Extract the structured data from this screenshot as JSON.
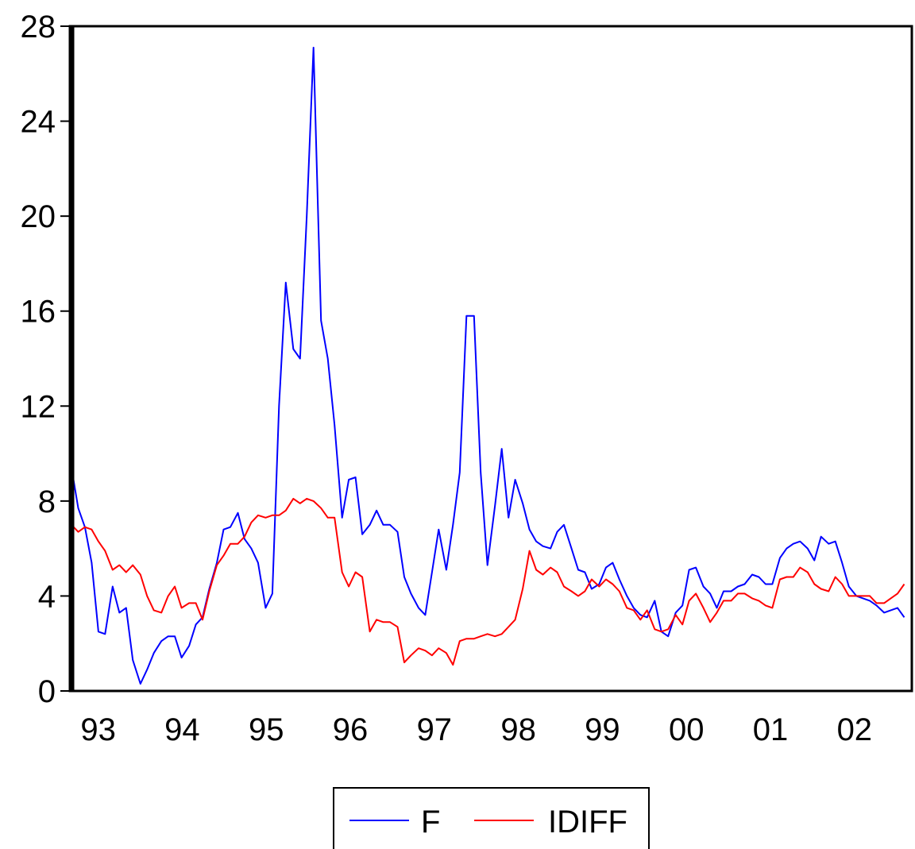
{
  "chart_data": {
    "type": "line",
    "title": "",
    "xlabel": "",
    "ylabel": "",
    "ylim": [
      0,
      28
    ],
    "xlim": [
      1992.72,
      2002.72
    ],
    "y_ticks": [
      "0",
      "4",
      "8",
      "12",
      "16",
      "20",
      "24",
      "28"
    ],
    "x_ticks": [
      {
        "x": 1993,
        "label": "93"
      },
      {
        "x": 1994,
        "label": "94"
      },
      {
        "x": 1995,
        "label": "95"
      },
      {
        "x": 1996,
        "label": "96"
      },
      {
        "x": 1997,
        "label": "97"
      },
      {
        "x": 1998,
        "label": "98"
      },
      {
        "x": 1999,
        "label": "99"
      },
      {
        "x": 2000,
        "label": "00"
      },
      {
        "x": 2001,
        "label": "01"
      },
      {
        "x": 2002,
        "label": "02"
      }
    ],
    "grid": false,
    "legend": "bottom-center",
    "series": [
      {
        "name": "F",
        "color": "#0000ff",
        "points": [
          [
            1992.72,
            9.4
          ],
          [
            1992.8,
            7.7
          ],
          [
            1992.88,
            6.9
          ],
          [
            1992.96,
            5.4
          ],
          [
            1993.04,
            2.5
          ],
          [
            1993.12,
            2.4
          ],
          [
            1993.21,
            4.4
          ],
          [
            1993.29,
            3.3
          ],
          [
            1993.37,
            3.5
          ],
          [
            1993.45,
            1.3
          ],
          [
            1993.54,
            0.3
          ],
          [
            1993.62,
            0.9
          ],
          [
            1993.7,
            1.6
          ],
          [
            1993.79,
            2.1
          ],
          [
            1993.87,
            2.3
          ],
          [
            1993.95,
            2.3
          ],
          [
            1994.03,
            1.4
          ],
          [
            1994.12,
            1.9
          ],
          [
            1994.2,
            2.8
          ],
          [
            1994.28,
            3.1
          ],
          [
            1994.36,
            4.3
          ],
          [
            1994.45,
            5.4
          ],
          [
            1994.53,
            6.8
          ],
          [
            1994.61,
            6.9
          ],
          [
            1994.7,
            7.5
          ],
          [
            1994.78,
            6.4
          ],
          [
            1994.86,
            6.0
          ],
          [
            1994.94,
            5.4
          ],
          [
            1995.03,
            3.5
          ],
          [
            1995.11,
            4.1
          ],
          [
            1995.19,
            12.0
          ],
          [
            1995.27,
            17.2
          ],
          [
            1995.36,
            14.4
          ],
          [
            1995.44,
            14.0
          ],
          [
            1995.52,
            20.0
          ],
          [
            1995.6,
            27.1
          ],
          [
            1995.69,
            15.6
          ],
          [
            1995.77,
            14.0
          ],
          [
            1995.85,
            11.2
          ],
          [
            1995.94,
            7.3
          ],
          [
            1996.02,
            8.9
          ],
          [
            1996.1,
            9.0
          ],
          [
            1996.18,
            6.6
          ],
          [
            1996.27,
            7.0
          ],
          [
            1996.35,
            7.6
          ],
          [
            1996.43,
            7.0
          ],
          [
            1996.51,
            7.0
          ],
          [
            1996.6,
            6.7
          ],
          [
            1996.68,
            4.8
          ],
          [
            1996.76,
            4.1
          ],
          [
            1996.85,
            3.5
          ],
          [
            1996.93,
            3.2
          ],
          [
            1997.01,
            5.0
          ],
          [
            1997.09,
            6.8
          ],
          [
            1997.18,
            5.1
          ],
          [
            1997.26,
            7.0
          ],
          [
            1997.34,
            9.2
          ],
          [
            1997.42,
            15.8
          ],
          [
            1997.51,
            15.8
          ],
          [
            1997.59,
            9.2
          ],
          [
            1997.67,
            5.3
          ],
          [
            1997.76,
            7.8
          ],
          [
            1997.84,
            10.2
          ],
          [
            1997.92,
            7.3
          ],
          [
            1998.0,
            8.9
          ],
          [
            1998.09,
            7.9
          ],
          [
            1998.17,
            6.8
          ],
          [
            1998.25,
            6.3
          ],
          [
            1998.33,
            6.1
          ],
          [
            1998.42,
            6.0
          ],
          [
            1998.5,
            6.7
          ],
          [
            1998.58,
            7.0
          ],
          [
            1998.67,
            6.0
          ],
          [
            1998.75,
            5.1
          ],
          [
            1998.83,
            5.0
          ],
          [
            1998.91,
            4.3
          ],
          [
            1999.0,
            4.5
          ],
          [
            1999.08,
            5.2
          ],
          [
            1999.16,
            5.4
          ],
          [
            1999.24,
            4.7
          ],
          [
            1999.33,
            4.0
          ],
          [
            1999.41,
            3.5
          ],
          [
            1999.49,
            3.2
          ],
          [
            1999.57,
            3.1
          ],
          [
            1999.66,
            3.8
          ],
          [
            1999.74,
            2.5
          ],
          [
            1999.82,
            2.3
          ],
          [
            1999.91,
            3.3
          ],
          [
            1999.99,
            3.6
          ],
          [
            2000.07,
            5.1
          ],
          [
            2000.15,
            5.2
          ],
          [
            2000.24,
            4.4
          ],
          [
            2000.32,
            4.1
          ],
          [
            2000.4,
            3.5
          ],
          [
            2000.48,
            4.2
          ],
          [
            2000.57,
            4.2
          ],
          [
            2000.65,
            4.4
          ],
          [
            2000.73,
            4.5
          ],
          [
            2000.82,
            4.9
          ],
          [
            2000.9,
            4.8
          ],
          [
            2000.98,
            4.5
          ],
          [
            2001.06,
            4.5
          ],
          [
            2001.15,
            5.6
          ],
          [
            2001.23,
            6.0
          ],
          [
            2001.31,
            6.2
          ],
          [
            2001.39,
            6.3
          ],
          [
            2001.48,
            6.0
          ],
          [
            2001.56,
            5.5
          ],
          [
            2001.64,
            6.5
          ],
          [
            2001.73,
            6.2
          ],
          [
            2001.81,
            6.3
          ],
          [
            2001.89,
            5.4
          ],
          [
            2001.97,
            4.4
          ],
          [
            2002.06,
            4.0
          ],
          [
            2002.14,
            3.9
          ],
          [
            2002.22,
            3.8
          ],
          [
            2002.3,
            3.6
          ],
          [
            2002.39,
            3.3
          ],
          [
            2002.47,
            3.4
          ],
          [
            2002.55,
            3.5
          ],
          [
            2002.63,
            3.1
          ]
        ]
      },
      {
        "name": "IDIFF",
        "color": "#ff0000",
        "points": [
          [
            1992.72,
            7.0
          ],
          [
            1992.8,
            6.7
          ],
          [
            1992.88,
            6.9
          ],
          [
            1992.96,
            6.8
          ],
          [
            1993.04,
            6.3
          ],
          [
            1993.12,
            5.9
          ],
          [
            1993.21,
            5.1
          ],
          [
            1993.29,
            5.3
          ],
          [
            1993.37,
            5.0
          ],
          [
            1993.45,
            5.3
          ],
          [
            1993.54,
            4.9
          ],
          [
            1993.62,
            4.0
          ],
          [
            1993.7,
            3.4
          ],
          [
            1993.79,
            3.3
          ],
          [
            1993.87,
            4.0
          ],
          [
            1993.95,
            4.4
          ],
          [
            1994.03,
            3.5
          ],
          [
            1994.12,
            3.7
          ],
          [
            1994.2,
            3.7
          ],
          [
            1994.28,
            3.0
          ],
          [
            1994.36,
            4.2
          ],
          [
            1994.45,
            5.3
          ],
          [
            1994.53,
            5.7
          ],
          [
            1994.61,
            6.2
          ],
          [
            1994.7,
            6.2
          ],
          [
            1994.78,
            6.5
          ],
          [
            1994.86,
            7.1
          ],
          [
            1994.94,
            7.4
          ],
          [
            1995.03,
            7.3
          ],
          [
            1995.11,
            7.4
          ],
          [
            1995.19,
            7.4
          ],
          [
            1995.27,
            7.6
          ],
          [
            1995.36,
            8.1
          ],
          [
            1995.44,
            7.9
          ],
          [
            1995.52,
            8.1
          ],
          [
            1995.6,
            8.0
          ],
          [
            1995.69,
            7.7
          ],
          [
            1995.77,
            7.3
          ],
          [
            1995.85,
            7.3
          ],
          [
            1995.94,
            5.0
          ],
          [
            1996.02,
            4.4
          ],
          [
            1996.1,
            5.0
          ],
          [
            1996.18,
            4.8
          ],
          [
            1996.27,
            2.5
          ],
          [
            1996.35,
            3.0
          ],
          [
            1996.43,
            2.9
          ],
          [
            1996.51,
            2.9
          ],
          [
            1996.6,
            2.7
          ],
          [
            1996.68,
            1.2
          ],
          [
            1996.76,
            1.5
          ],
          [
            1996.85,
            1.8
          ],
          [
            1996.93,
            1.7
          ],
          [
            1997.01,
            1.5
          ],
          [
            1997.09,
            1.8
          ],
          [
            1997.18,
            1.6
          ],
          [
            1997.26,
            1.1
          ],
          [
            1997.34,
            2.1
          ],
          [
            1997.42,
            2.2
          ],
          [
            1997.51,
            2.2
          ],
          [
            1997.59,
            2.3
          ],
          [
            1997.67,
            2.4
          ],
          [
            1997.76,
            2.3
          ],
          [
            1997.84,
            2.4
          ],
          [
            1997.92,
            2.7
          ],
          [
            1998.0,
            3.0
          ],
          [
            1998.09,
            4.3
          ],
          [
            1998.17,
            5.9
          ],
          [
            1998.25,
            5.1
          ],
          [
            1998.33,
            4.9
          ],
          [
            1998.42,
            5.2
          ],
          [
            1998.5,
            5.0
          ],
          [
            1998.58,
            4.4
          ],
          [
            1998.67,
            4.2
          ],
          [
            1998.75,
            4.0
          ],
          [
            1998.83,
            4.2
          ],
          [
            1998.91,
            4.7
          ],
          [
            1999.0,
            4.4
          ],
          [
            1999.08,
            4.7
          ],
          [
            1999.16,
            4.5
          ],
          [
            1999.24,
            4.2
          ],
          [
            1999.33,
            3.5
          ],
          [
            1999.41,
            3.4
          ],
          [
            1999.49,
            3.0
          ],
          [
            1999.57,
            3.4
          ],
          [
            1999.66,
            2.6
          ],
          [
            1999.74,
            2.5
          ],
          [
            1999.82,
            2.6
          ],
          [
            1999.91,
            3.2
          ],
          [
            1999.99,
            2.8
          ],
          [
            2000.07,
            3.8
          ],
          [
            2000.15,
            4.1
          ],
          [
            2000.24,
            3.5
          ],
          [
            2000.32,
            2.9
          ],
          [
            2000.4,
            3.3
          ],
          [
            2000.48,
            3.8
          ],
          [
            2000.57,
            3.8
          ],
          [
            2000.65,
            4.1
          ],
          [
            2000.73,
            4.1
          ],
          [
            2000.82,
            3.9
          ],
          [
            2000.9,
            3.8
          ],
          [
            2000.98,
            3.6
          ],
          [
            2001.06,
            3.5
          ],
          [
            2001.15,
            4.7
          ],
          [
            2001.23,
            4.8
          ],
          [
            2001.31,
            4.8
          ],
          [
            2001.39,
            5.2
          ],
          [
            2001.48,
            5.0
          ],
          [
            2001.56,
            4.5
          ],
          [
            2001.64,
            4.3
          ],
          [
            2001.73,
            4.2
          ],
          [
            2001.81,
            4.8
          ],
          [
            2001.89,
            4.5
          ],
          [
            2001.97,
            4.0
          ],
          [
            2002.06,
            4.0
          ],
          [
            2002.14,
            4.0
          ],
          [
            2002.22,
            4.0
          ],
          [
            2002.3,
            3.7
          ],
          [
            2002.39,
            3.7
          ],
          [
            2002.47,
            3.9
          ],
          [
            2002.55,
            4.1
          ],
          [
            2002.63,
            4.5
          ]
        ]
      }
    ]
  }
}
